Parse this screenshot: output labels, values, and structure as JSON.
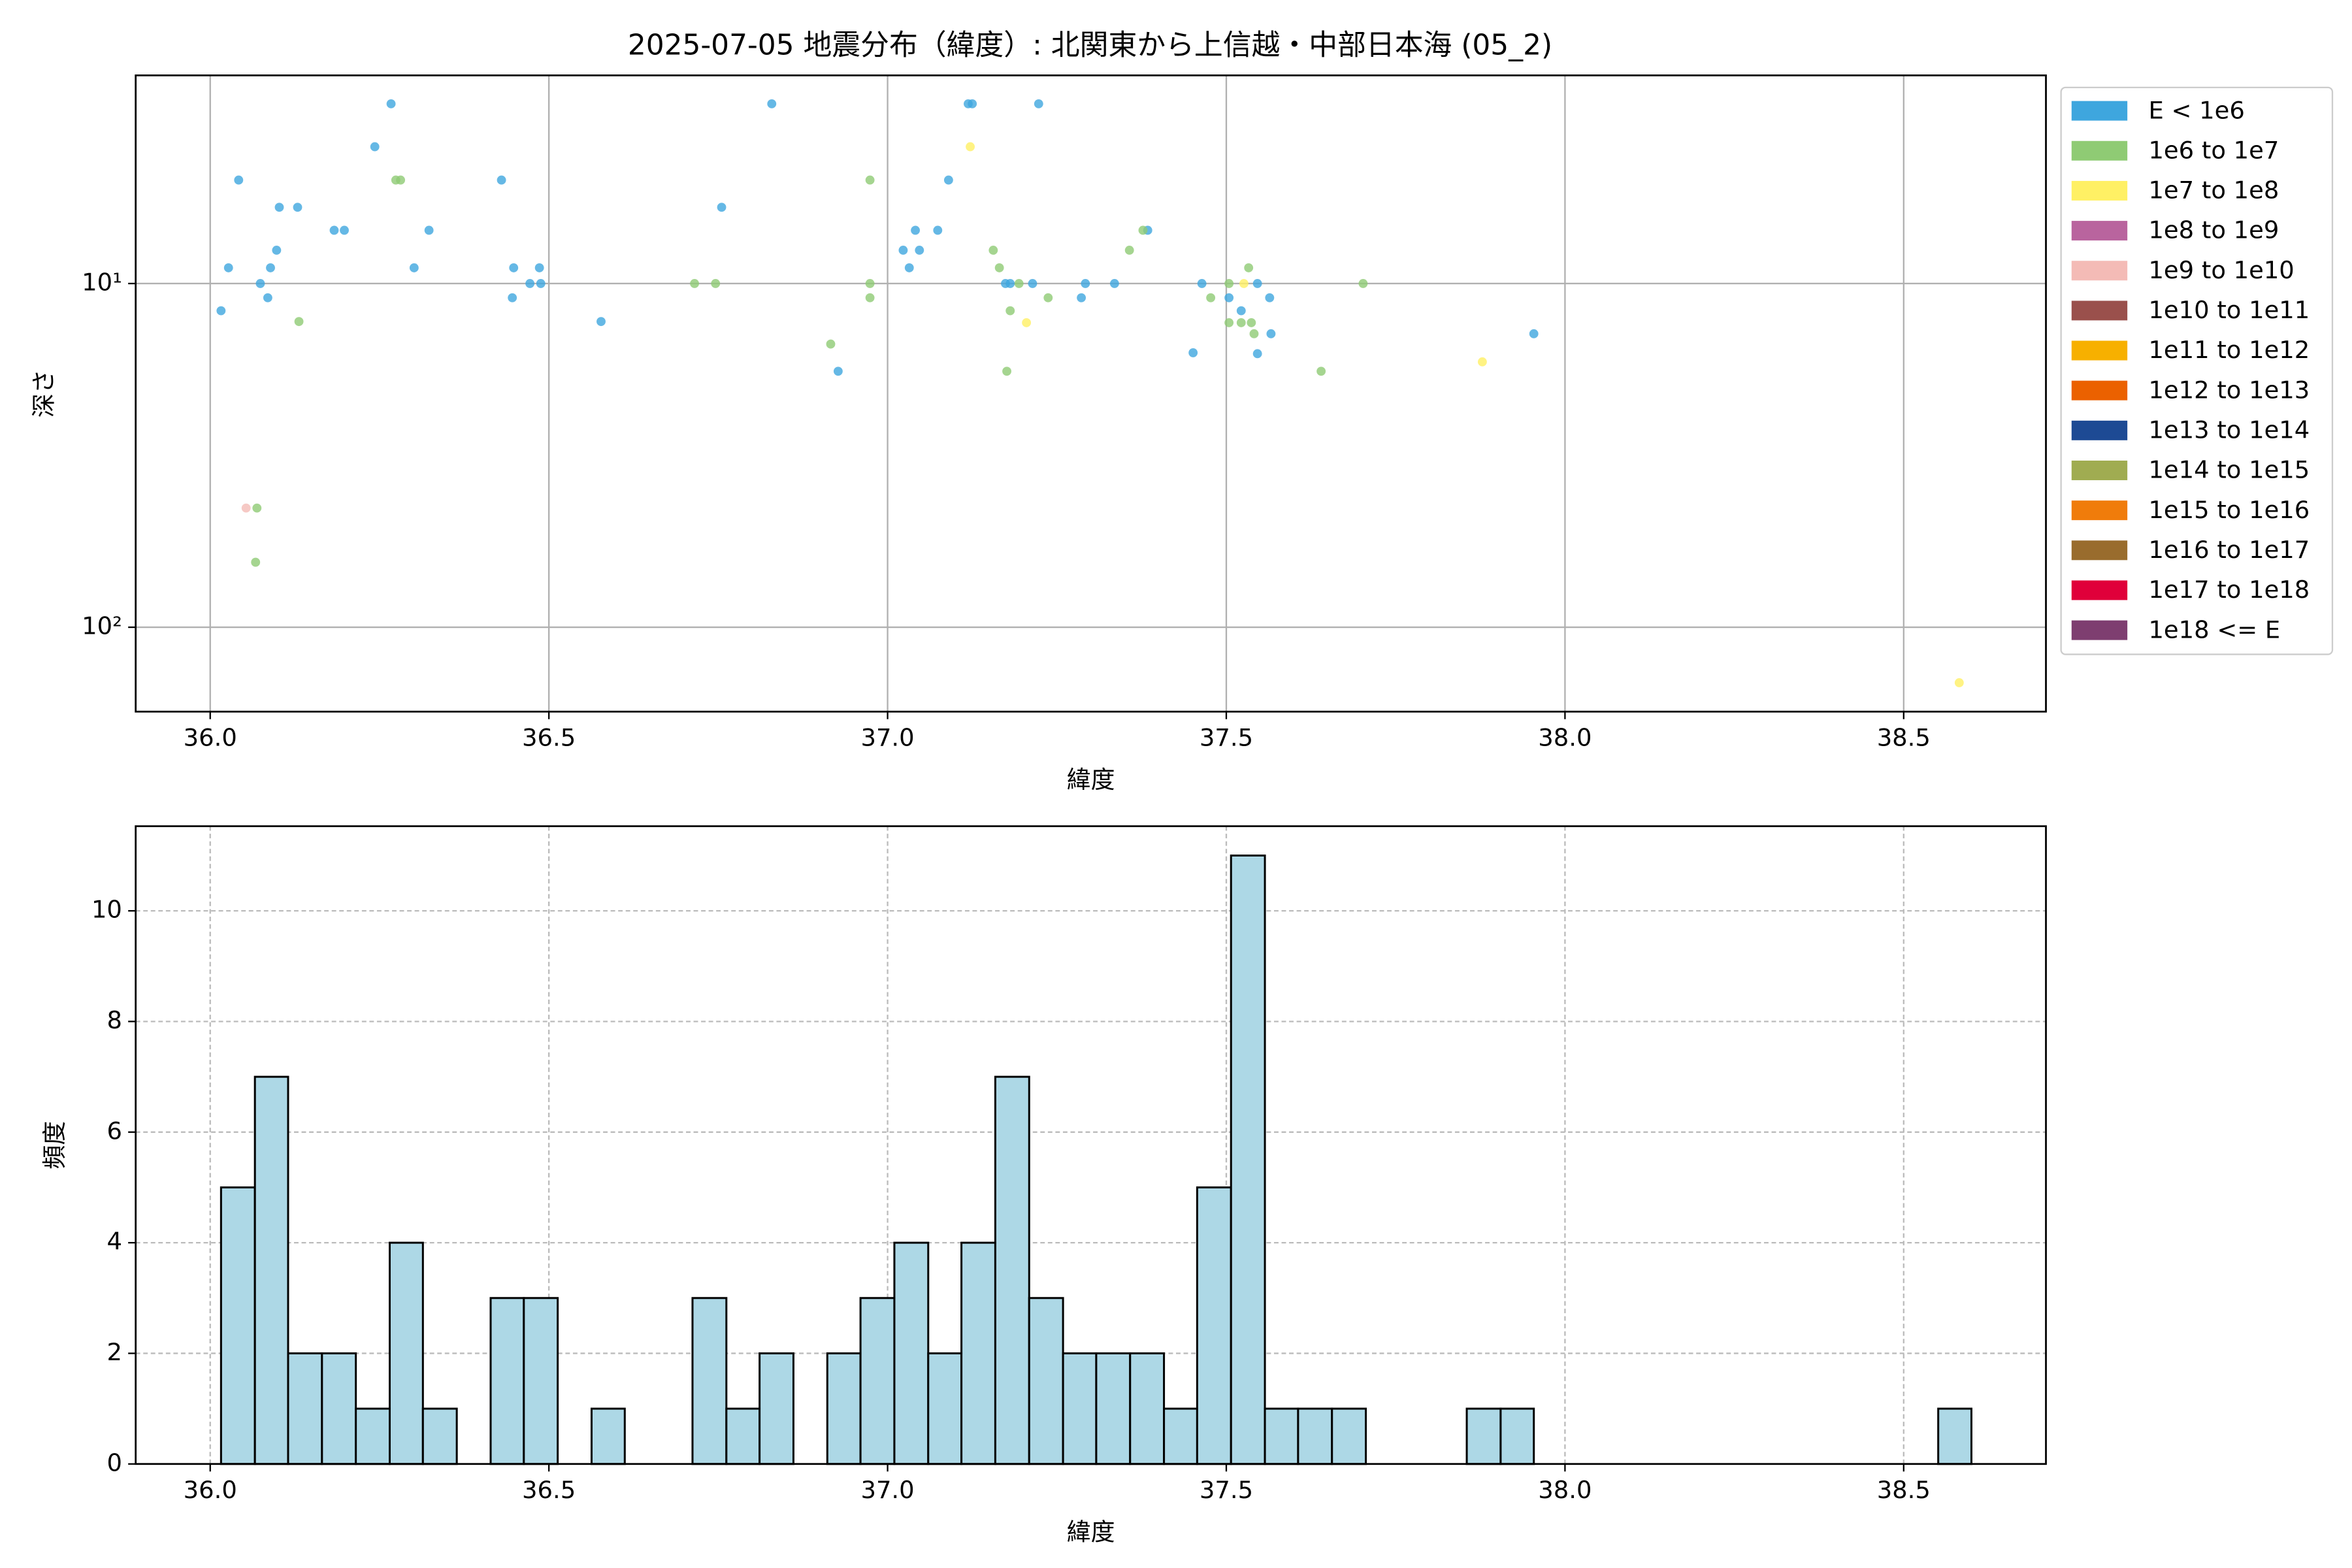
{
  "chart_data": [
    {
      "type": "scatter",
      "title": "2025-07-05 地震分布（緯度）: 北関東から上信越・中部日本海 (05_2)",
      "xlabel": "緯度",
      "ylabel": "深さ",
      "xlim": [
        35.89,
        38.71
      ],
      "ylim": [
        2.48,
        176
      ],
      "y_log": true,
      "y_inverted": true,
      "grid": true,
      "legend": "outside right",
      "xticks": [
        {
          "value": 36,
          "label": "36.0"
        },
        {
          "value": 36.5,
          "label": "36.5"
        },
        {
          "value": 37,
          "label": "37.0"
        },
        {
          "value": 37.5,
          "label": "37.5"
        },
        {
          "value": 38,
          "label": "38.0"
        },
        {
          "value": 38.5,
          "label": "38.5"
        }
      ],
      "yticks": [
        {
          "value": 10,
          "label": "10¹"
        },
        {
          "value": 100,
          "label": "10²"
        }
      ],
      "series": [
        {
          "name": "E < 1e6",
          "color": "#3ea6de",
          "x": [
            36.016,
            36.027,
            36.042,
            36.074,
            36.085,
            36.089,
            36.098,
            36.102,
            36.129,
            36.183,
            36.198,
            36.243,
            36.267,
            36.301,
            36.323,
            36.43,
            36.446,
            36.448,
            36.472,
            36.486,
            36.488,
            36.577,
            36.755,
            36.829,
            36.927,
            37.023,
            37.032,
            37.041,
            37.047,
            37.074,
            37.09,
            37.119,
            37.125,
            37.174,
            37.181,
            37.214,
            37.223,
            37.286,
            37.292,
            37.335,
            37.384,
            37.451,
            37.464,
            37.504,
            37.522,
            37.546,
            37.546,
            37.564,
            37.566,
            37.954
          ],
          "y": [
            12,
            9,
            5,
            10,
            11,
            9,
            8,
            6,
            6,
            7,
            7,
            4,
            3,
            9,
            7,
            5,
            11,
            9,
            10,
            9,
            10,
            12.9,
            6,
            3,
            18,
            8,
            9,
            7,
            8,
            7,
            5,
            3,
            3,
            10,
            10,
            10,
            3,
            11,
            10,
            10,
            7,
            15.9,
            10,
            11,
            12,
            16,
            10,
            11,
            14,
            14
          ]
        },
        {
          "name": "1e6 to 1e7",
          "color": "#8fcb74",
          "x": [
            36.069,
            36.067,
            36.131,
            36.274,
            36.281,
            36.715,
            36.746,
            36.916,
            36.974,
            36.974,
            36.974,
            37.156,
            37.165,
            37.181,
            37.176,
            37.194,
            37.237,
            37.357,
            37.377,
            37.477,
            37.504,
            37.522,
            37.533,
            37.504,
            37.537,
            37.541,
            37.64,
            37.702
          ],
          "y": [
            45,
            64.7,
            12.9,
            5,
            5,
            10,
            10,
            15,
            5,
            10,
            11,
            8,
            9,
            12,
            18,
            10,
            11,
            8,
            7,
            11,
            13,
            13,
            9,
            10,
            13,
            14,
            18,
            10
          ]
        },
        {
          "name": "1e7 to 1e8",
          "color": "#fff064",
          "x": [
            37.122,
            37.205,
            37.526,
            37.878,
            38.582
          ],
          "y": [
            4,
            13,
            10,
            16.9,
            145
          ]
        },
        {
          "name": "1e8 to 1e9",
          "color": "#b9649e",
          "x": [],
          "y": []
        },
        {
          "name": "1e9 to 1e10",
          "color": "#f4bbb6",
          "x": [
            36.053
          ],
          "y": [
            45
          ]
        },
        {
          "name": "1e10 to 1e11",
          "color": "#9a504c",
          "x": [],
          "y": []
        },
        {
          "name": "1e11 to 1e12",
          "color": "#f7b000",
          "x": [],
          "y": []
        },
        {
          "name": "1e12 to 1e13",
          "color": "#eb6100",
          "x": [],
          "y": []
        },
        {
          "name": "1e13 to 1e14",
          "color": "#1d4a94",
          "x": [],
          "y": []
        },
        {
          "name": "1e14 to 1e15",
          "color": "#a0ac51",
          "x": [],
          "y": []
        },
        {
          "name": "1e15 to 1e16",
          "color": "#f07c0b",
          "x": [],
          "y": []
        },
        {
          "name": "1e16 to 1e17",
          "color": "#996c2d",
          "x": [],
          "y": []
        },
        {
          "name": "1e17 to 1e18",
          "color": "#e0003a",
          "x": [],
          "y": []
        },
        {
          "name": "1e18 <= E",
          "color": "#7e3e70",
          "x": [],
          "y": []
        }
      ]
    },
    {
      "type": "histogram",
      "xlabel": "緯度",
      "ylabel": "頻度",
      "xlim": [
        35.89,
        38.71
      ],
      "ylim": [
        0,
        11.53
      ],
      "grid": true,
      "color": "#add8e6",
      "edgecolor": "#000000",
      "xticks": [
        {
          "value": 36,
          "label": "36.0"
        },
        {
          "value": 36.5,
          "label": "36.5"
        },
        {
          "value": 37,
          "label": "37.0"
        },
        {
          "value": 37.5,
          "label": "37.5"
        },
        {
          "value": 38,
          "label": "38.0"
        },
        {
          "value": 38.5,
          "label": "38.5"
        }
      ],
      "yticks": [
        0,
        2,
        4,
        6,
        8,
        10
      ],
      "bins": [
        36.016,
        36.066,
        36.115,
        36.165,
        36.215,
        36.265,
        36.314,
        36.364,
        36.414,
        36.463,
        36.513,
        36.563,
        36.612,
        36.662,
        36.712,
        36.762,
        36.811,
        36.861,
        36.911,
        36.96,
        37.01,
        37.06,
        37.109,
        37.159,
        37.209,
        37.259,
        37.308,
        37.358,
        37.408,
        37.457,
        37.507,
        37.557,
        37.606,
        37.656,
        37.706,
        37.756,
        37.805,
        37.855,
        37.905,
        37.954,
        38.004,
        38.054,
        38.103,
        38.153,
        38.203,
        38.253,
        38.302,
        38.352,
        38.402,
        38.451,
        38.501,
        38.551,
        38.6
      ],
      "counts": [
        5,
        7,
        2,
        2,
        1,
        4,
        1,
        0,
        3,
        3,
        0,
        1,
        0,
        0,
        3,
        1,
        2,
        0,
        2,
        3,
        4,
        2,
        4,
        7,
        3,
        2,
        2,
        2,
        1,
        5,
        11,
        1,
        1,
        1,
        0,
        0,
        0,
        1,
        1,
        0,
        0,
        0,
        0,
        0,
        0,
        0,
        0,
        0,
        0,
        0,
        0,
        1
      ]
    }
  ]
}
